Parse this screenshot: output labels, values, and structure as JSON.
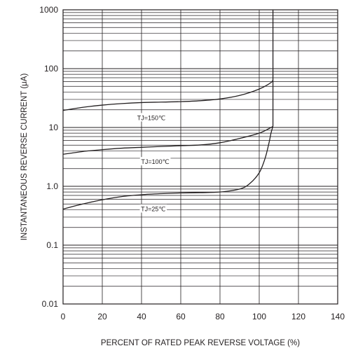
{
  "chart_data": {
    "type": "line",
    "title": "",
    "xlabel": "PERCENT OF RATED PEAK REVERSE VOLTAGE (%)",
    "ylabel": "INSTANTANEOUS REVERSE CURRENT (μA)",
    "x_scale": "linear",
    "y_scale": "log",
    "xlim": [
      0,
      140
    ],
    "ylim": [
      0.01,
      1000
    ],
    "x_ticks": [
      0,
      20,
      40,
      60,
      80,
      100,
      120,
      140
    ],
    "x_tick_labels": [
      "0",
      "20",
      "40",
      "60",
      "80",
      "100",
      "120",
      "140"
    ],
    "y_ticks": [
      0.01,
      0.1,
      1.0,
      10,
      100,
      1000
    ],
    "y_tick_labels": [
      "0.01",
      "0.1",
      "1.0",
      "10",
      "100",
      "1000"
    ],
    "grid": true,
    "legend": "none",
    "line_color": "#231f20",
    "series": [
      {
        "label": "TJ=150℃",
        "x": [
          0,
          10,
          20,
          30,
          40,
          50,
          60,
          70,
          80,
          90,
          100,
          106,
          107
        ],
        "y": [
          19.5,
          22,
          24,
          25.5,
          26.5,
          27,
          27.5,
          28.5,
          30.5,
          35,
          45,
          58,
          65
        ],
        "label_at": [
          45,
          14.5
        ]
      },
      {
        "label": "TJ=100℃",
        "x": [
          0,
          10,
          20,
          30,
          40,
          50,
          60,
          70,
          80,
          90,
          100,
          106,
          107
        ],
        "y": [
          3.5,
          3.9,
          4.2,
          4.45,
          4.6,
          4.75,
          4.9,
          5.05,
          5.5,
          6.5,
          8,
          10,
          10.5
        ],
        "label_at": [
          47,
          2.6
        ]
      },
      {
        "label": "TJ=25℃",
        "x": [
          0,
          10,
          20,
          30,
          40,
          50,
          60,
          70,
          80,
          90,
          95,
          100,
          103,
          105,
          106,
          107
        ],
        "y": [
          0.41,
          0.5,
          0.59,
          0.67,
          0.72,
          0.75,
          0.77,
          0.78,
          0.8,
          0.9,
          1.1,
          1.7,
          3.0,
          5.5,
          8.0,
          10.5
        ],
        "label_at": [
          46,
          0.41
        ]
      }
    ],
    "vertical_line": {
      "x": 107,
      "y_from": 1000,
      "y_to": 10.5
    }
  }
}
